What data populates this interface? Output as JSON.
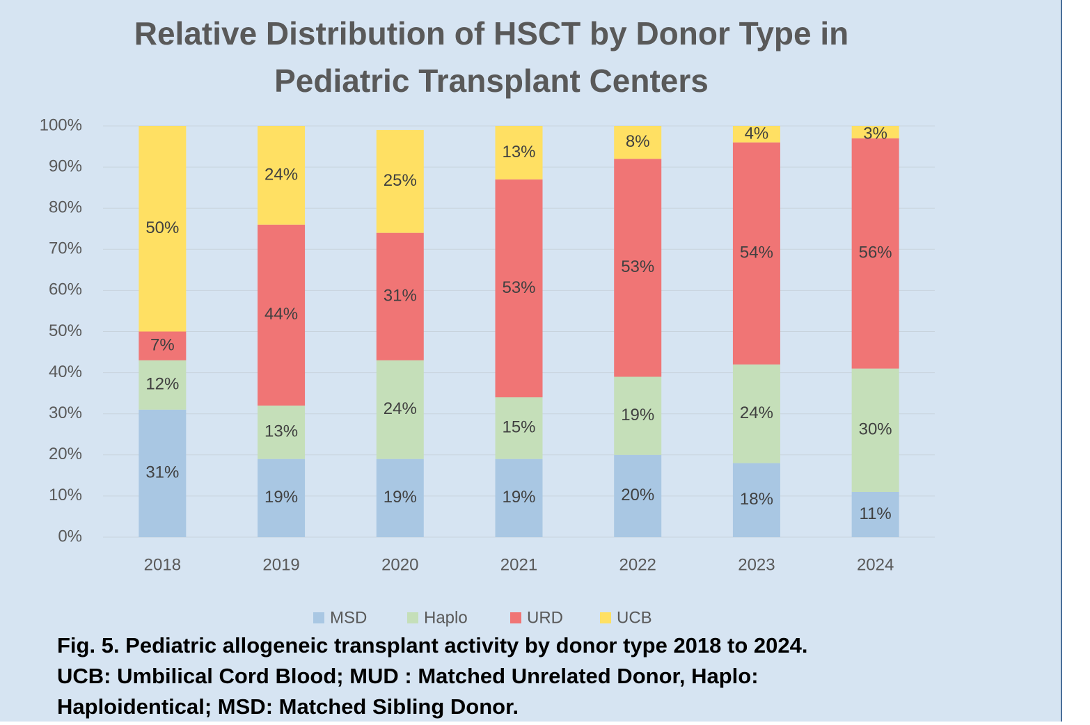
{
  "chart_data": {
    "type": "stacked_bar",
    "title": [
      "Relative Distribution of HSCT by Donor Type in",
      "Pediatric Transplant Centers"
    ],
    "categories": [
      "2018",
      "2019",
      "2020",
      "2021",
      "2022",
      "2023",
      "2024"
    ],
    "series": [
      {
        "name": "MSD",
        "color": "#a9c7e3",
        "values": [
          31,
          19,
          19,
          19,
          20,
          18,
          11
        ],
        "value_labels": [
          "31%",
          "19%",
          "19%",
          "19%",
          "20%",
          "18%",
          "11%"
        ]
      },
      {
        "name": "Haplo",
        "color": "#c5dfb9",
        "values": [
          12,
          13,
          24,
          15,
          19,
          24,
          30
        ],
        "value_labels": [
          "12%",
          "13%",
          "24%",
          "15%",
          "19%",
          "24%",
          "30%"
        ]
      },
      {
        "name": "URD",
        "color": "#f07575",
        "values": [
          7,
          44,
          31,
          53,
          53,
          54,
          56
        ],
        "value_labels": [
          "7%",
          "44%",
          "31%",
          "53%",
          "53%",
          "54%",
          "56%"
        ]
      },
      {
        "name": "UCB",
        "color": "#ffe063",
        "values": [
          50,
          24,
          25,
          13,
          8,
          4,
          3
        ],
        "value_labels": [
          "50%",
          "24%",
          "25%",
          "13%",
          "8%",
          "4%",
          "3%"
        ]
      }
    ],
    "ylim": [
      0,
      100
    ],
    "yticks": [
      {
        "value": 0,
        "label": "0%"
      },
      {
        "value": 10,
        "label": "10%"
      },
      {
        "value": 20,
        "label": "20%"
      },
      {
        "value": 30,
        "label": "30%"
      },
      {
        "value": 40,
        "label": "40%"
      },
      {
        "value": 50,
        "label": "50%"
      },
      {
        "value": 60,
        "label": "60%"
      },
      {
        "value": 70,
        "label": "70%"
      },
      {
        "value": 80,
        "label": "80%"
      },
      {
        "value": 90,
        "label": "90%"
      },
      {
        "value": 100,
        "label": "100%"
      }
    ],
    "grid": true,
    "legend": "bottom",
    "caption": [
      "Fig. 5. Pediatric allogeneic transplant activity by donor type 2018 to 2024.",
      "UCB:  Umbilical Cord Blood; MUD : Matched Unrelated Donor, Haplo:",
      "Haploidentical; MSD: Matched Sibling Donor."
    ]
  }
}
